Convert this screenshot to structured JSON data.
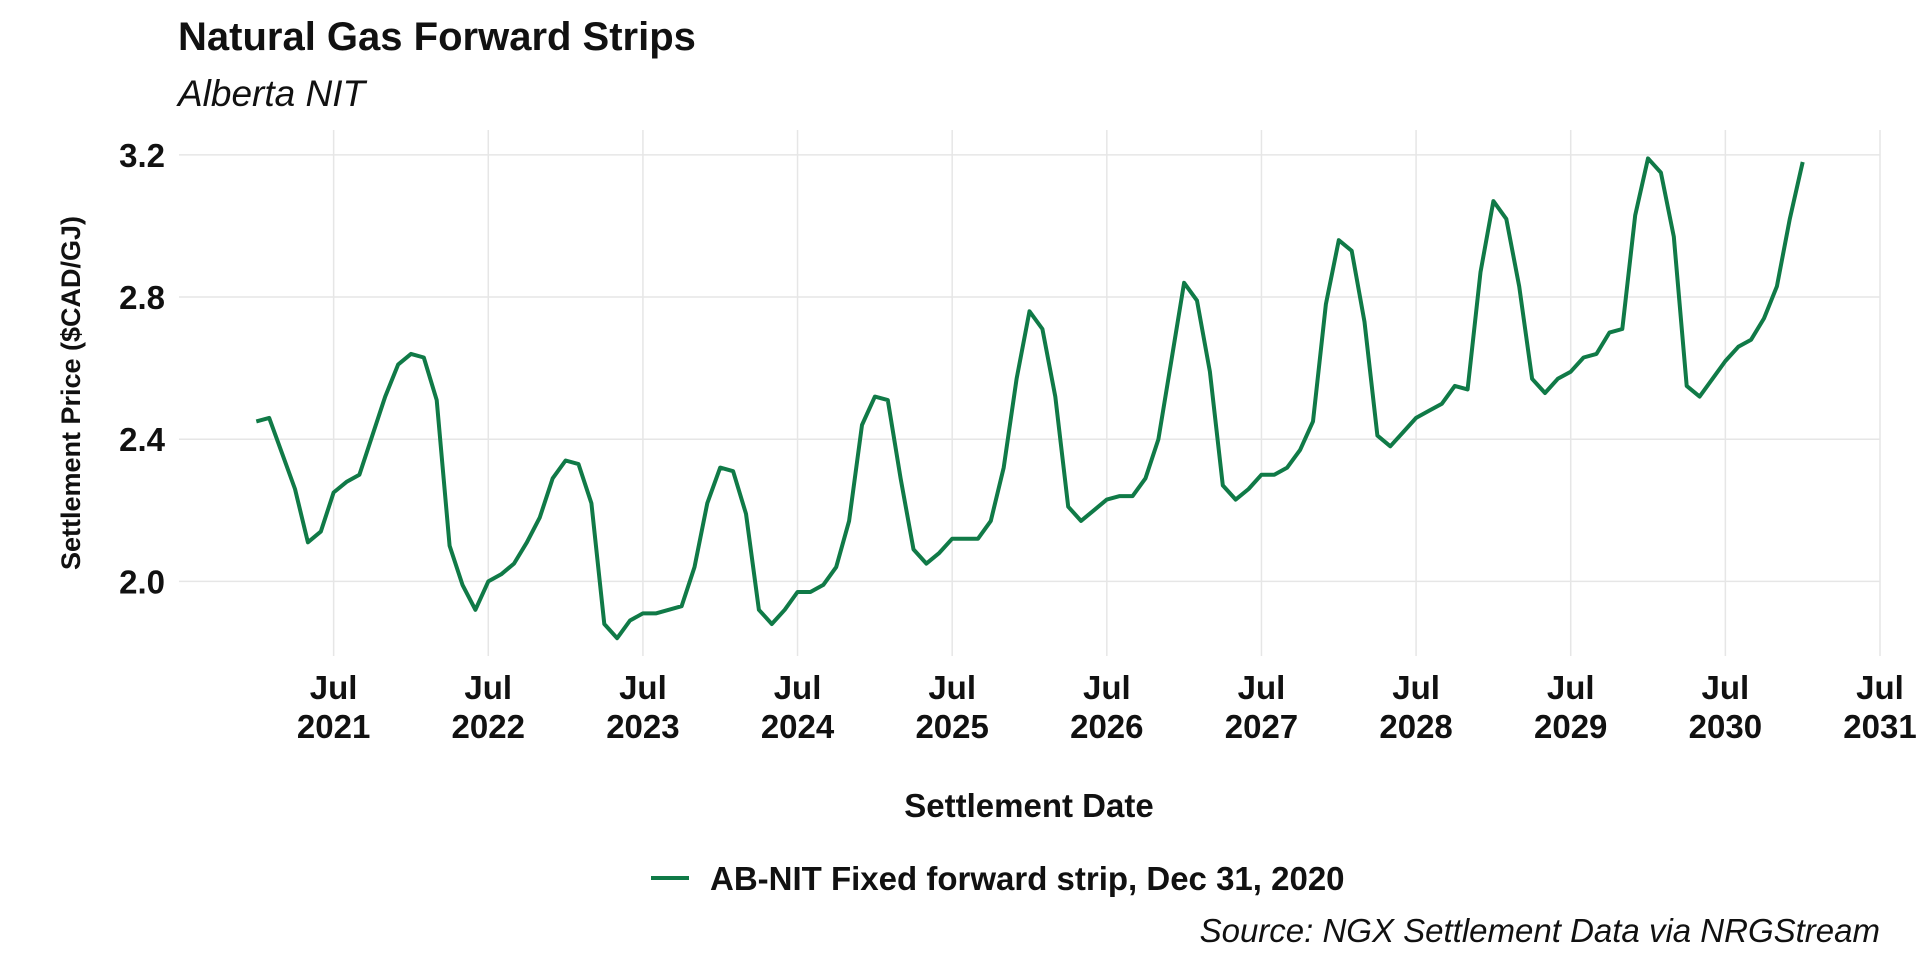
{
  "chart_data": {
    "type": "line",
    "title": "Natural Gas Forward Strips",
    "subtitle": "Alberta NIT",
    "x_label": "Settlement Date",
    "y_label": "Settlement Price ($CAD/GJ)",
    "caption": "Source: NGX Settlement Data via NRGStream",
    "x": [
      "2021-01",
      "2021-02",
      "2021-03",
      "2021-04",
      "2021-05",
      "2021-06",
      "2021-07",
      "2021-08",
      "2021-09",
      "2021-10",
      "2021-11",
      "2021-12",
      "2022-01",
      "2022-02",
      "2022-03",
      "2022-04",
      "2022-05",
      "2022-06",
      "2022-07",
      "2022-08",
      "2022-09",
      "2022-10",
      "2022-11",
      "2022-12",
      "2023-01",
      "2023-02",
      "2023-03",
      "2023-04",
      "2023-05",
      "2023-06",
      "2023-07",
      "2023-08",
      "2023-09",
      "2023-10",
      "2023-11",
      "2023-12",
      "2024-01",
      "2024-02",
      "2024-03",
      "2024-04",
      "2024-05",
      "2024-06",
      "2024-07",
      "2024-08",
      "2024-09",
      "2024-10",
      "2024-11",
      "2024-12",
      "2025-01",
      "2025-02",
      "2025-03",
      "2025-04",
      "2025-05",
      "2025-06",
      "2025-07",
      "2025-08",
      "2025-09",
      "2025-10",
      "2025-11",
      "2025-12",
      "2026-01",
      "2026-02",
      "2026-03",
      "2026-04",
      "2026-05",
      "2026-06",
      "2026-07",
      "2026-08",
      "2026-09",
      "2026-10",
      "2026-11",
      "2026-12",
      "2027-01",
      "2027-02",
      "2027-03",
      "2027-04",
      "2027-05",
      "2027-06",
      "2027-07",
      "2027-08",
      "2027-09",
      "2027-10",
      "2027-11",
      "2027-12",
      "2028-01",
      "2028-02",
      "2028-03",
      "2028-04",
      "2028-05",
      "2028-06",
      "2028-07",
      "2028-08",
      "2028-09",
      "2028-10",
      "2028-11",
      "2028-12",
      "2029-01",
      "2029-02",
      "2029-03",
      "2029-04",
      "2029-05",
      "2029-06",
      "2029-07",
      "2029-08",
      "2029-09",
      "2029-10",
      "2029-11",
      "2029-12",
      "2030-01",
      "2030-02",
      "2030-03",
      "2030-04",
      "2030-05",
      "2030-06",
      "2030-07",
      "2030-08",
      "2030-09",
      "2030-10",
      "2030-11",
      "2030-12",
      "2031-01"
    ],
    "series": [
      {
        "name": "AB-NIT Fixed forward strip, Dec 31, 2020",
        "color": "#107a47",
        "values": [
          2.45,
          2.46,
          2.36,
          2.26,
          2.11,
          2.14,
          2.25,
          2.28,
          2.3,
          2.41,
          2.52,
          2.61,
          2.64,
          2.63,
          2.51,
          2.1,
          1.99,
          1.92,
          2.0,
          2.02,
          2.05,
          2.11,
          2.18,
          2.29,
          2.34,
          2.33,
          2.22,
          1.88,
          1.84,
          1.89,
          1.91,
          1.91,
          1.92,
          1.93,
          2.04,
          2.22,
          2.32,
          2.31,
          2.19,
          1.92,
          1.88,
          1.92,
          1.97,
          1.97,
          1.99,
          2.04,
          2.17,
          2.44,
          2.52,
          2.51,
          2.29,
          2.09,
          2.05,
          2.08,
          2.12,
          2.12,
          2.12,
          2.17,
          2.32,
          2.57,
          2.76,
          2.71,
          2.52,
          2.21,
          2.17,
          2.2,
          2.23,
          2.24,
          2.24,
          2.29,
          2.4,
          2.62,
          2.84,
          2.79,
          2.59,
          2.27,
          2.23,
          2.26,
          2.3,
          2.3,
          2.32,
          2.37,
          2.45,
          2.78,
          2.96,
          2.93,
          2.73,
          2.41,
          2.38,
          2.42,
          2.46,
          2.48,
          2.5,
          2.55,
          2.54,
          2.87,
          3.07,
          3.02,
          2.83,
          2.57,
          2.53,
          2.57,
          2.59,
          2.63,
          2.64,
          2.7,
          2.71,
          3.03,
          3.19,
          3.15,
          2.97,
          2.55,
          2.52,
          2.57,
          2.62,
          2.66,
          2.68,
          2.74,
          2.83,
          3.02,
          3.18
        ]
      }
    ],
    "xlim": [
      "2020-07",
      "2031-07"
    ],
    "xticks": [
      {
        "value": "2021-07",
        "label": "Jul 2021"
      },
      {
        "value": "2022-07",
        "label": "Jul 2022"
      },
      {
        "value": "2023-07",
        "label": "Jul 2023"
      },
      {
        "value": "2024-07",
        "label": "Jul 2024"
      },
      {
        "value": "2025-07",
        "label": "Jul 2025"
      },
      {
        "value": "2026-07",
        "label": "Jul 2026"
      },
      {
        "value": "2027-07",
        "label": "Jul 2027"
      },
      {
        "value": "2028-07",
        "label": "Jul 2028"
      },
      {
        "value": "2029-07",
        "label": "Jul 2029"
      },
      {
        "value": "2030-07",
        "label": "Jul 2030"
      },
      {
        "value": "2031-07",
        "label": "Jul 2031"
      }
    ],
    "ylim": [
      1.79,
      3.27
    ],
    "yticks": [
      {
        "value": 2,
        "label": "2.0"
      },
      2.4,
      2.8,
      3.2
    ],
    "grid": true,
    "legend": "bottom"
  }
}
